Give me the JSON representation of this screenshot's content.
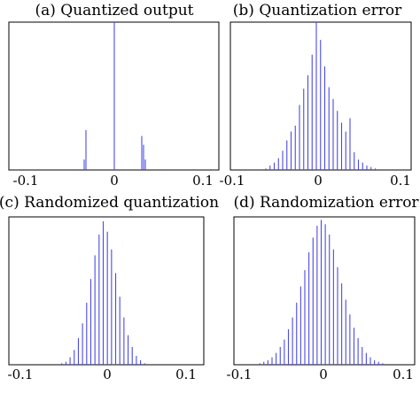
{
  "colors": {
    "bar": "#4a4ae8",
    "axis": "#000000",
    "background": "#ffffff"
  },
  "chart_data": [
    {
      "type": "bar",
      "title": "(a) Quantized output",
      "xlim": [
        -0.1,
        0.1
      ],
      "xticks": [
        "-0.1",
        "0",
        "0.1"
      ],
      "ylim": [
        0,
        1
      ],
      "grid": false,
      "x": [
        -0.034,
        -0.032,
        0.0,
        0.031,
        0.033,
        0.035
      ],
      "values": [
        0.07,
        0.27,
        1.0,
        0.23,
        0.17,
        0.07
      ]
    },
    {
      "type": "bar",
      "title": "(b) Quantization error",
      "xlim": [
        -0.1,
        0.1
      ],
      "xticks": [
        "-0.1",
        "0",
        "0.1"
      ],
      "ylim": [
        0,
        1
      ],
      "grid": false,
      "x": [
        -0.06,
        -0.055,
        -0.05,
        -0.045,
        -0.04,
        -0.035,
        -0.03,
        -0.025,
        -0.02,
        -0.015,
        -0.01,
        -0.005,
        0.0,
        0.005,
        0.01,
        0.015,
        0.02,
        0.025,
        0.03,
        0.035,
        0.04,
        0.045,
        0.05,
        0.055,
        0.06,
        0.065,
        0.07
      ],
      "values": [
        0.01,
        0.03,
        0.05,
        0.08,
        0.13,
        0.2,
        0.26,
        0.3,
        0.44,
        0.55,
        0.64,
        0.78,
        1.0,
        0.88,
        0.7,
        0.56,
        0.48,
        0.4,
        0.32,
        0.26,
        0.35,
        0.12,
        0.07,
        0.05,
        0.03,
        0.02,
        0.01
      ]
    },
    {
      "type": "bar",
      "title": "(c) Randomized quantization",
      "xlim": [
        -0.1,
        0.1
      ],
      "xticks": [
        "-0.1",
        "0",
        "0.1"
      ],
      "ylim": [
        0,
        1
      ],
      "grid": false,
      "x": [
        -0.05,
        -0.045,
        -0.04,
        -0.035,
        -0.03,
        -0.025,
        -0.02,
        -0.015,
        -0.01,
        -0.005,
        0.0,
        0.005,
        0.01,
        0.015,
        0.02,
        0.025,
        0.03,
        0.035,
        0.04,
        0.045,
        0.05
      ],
      "values": [
        0.01,
        0.02,
        0.05,
        0.1,
        0.18,
        0.28,
        0.42,
        0.58,
        0.74,
        0.88,
        0.97,
        0.9,
        0.78,
        0.62,
        0.46,
        0.32,
        0.2,
        0.12,
        0.06,
        0.03,
        0.01
      ]
    },
    {
      "type": "bar",
      "title": "(d) Randomization error",
      "xlim": [
        -0.1,
        0.1
      ],
      "xticks": [
        "-0.1",
        "0",
        "0.1"
      ],
      "ylim": [
        0,
        1
      ],
      "grid": false,
      "x": [
        -0.075,
        -0.07,
        -0.065,
        -0.06,
        -0.055,
        -0.05,
        -0.045,
        -0.04,
        -0.035,
        -0.03,
        -0.025,
        -0.02,
        -0.015,
        -0.01,
        -0.005,
        0.0,
        0.005,
        0.01,
        0.015,
        0.02,
        0.025,
        0.03,
        0.035,
        0.04,
        0.045,
        0.05,
        0.055,
        0.06,
        0.065,
        0.07,
        0.075
      ],
      "values": [
        0.01,
        0.02,
        0.03,
        0.05,
        0.08,
        0.12,
        0.17,
        0.24,
        0.32,
        0.42,
        0.53,
        0.64,
        0.76,
        0.86,
        0.94,
        0.98,
        0.95,
        0.88,
        0.78,
        0.66,
        0.55,
        0.44,
        0.34,
        0.25,
        0.18,
        0.12,
        0.08,
        0.05,
        0.03,
        0.02,
        0.01
      ]
    }
  ]
}
